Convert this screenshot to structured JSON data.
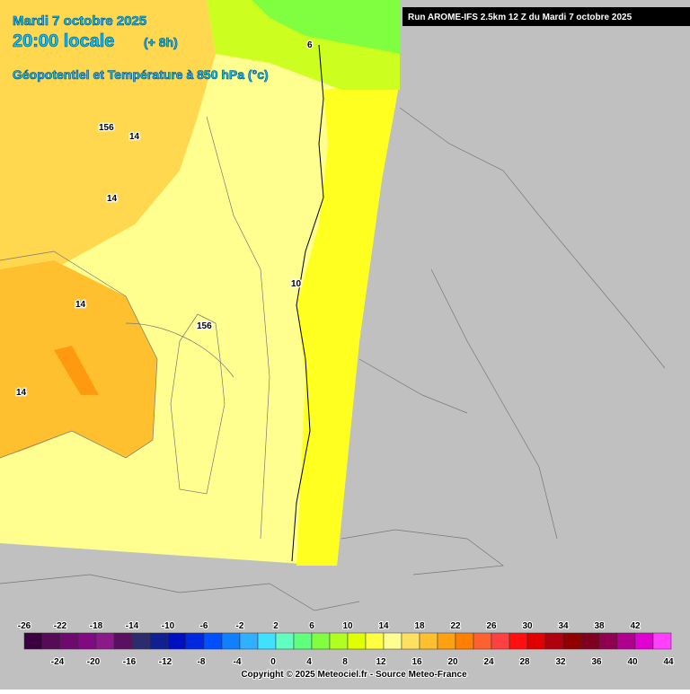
{
  "header": {
    "date": "Mardi 7 octobre 2025",
    "time": "20:00 locale",
    "lead": "(+ 8h)",
    "field": "Géopotentiel et Température à 850 hPa (°c)"
  },
  "run": "Run AROME-IFS 2.5km 12 Z du Mardi 7 octobre 2025",
  "contour_labels": [
    "6",
    "156",
    "14",
    "14",
    "14",
    "10",
    "156",
    "14"
  ],
  "legend": {
    "values": [
      -26,
      -24,
      -22,
      -20,
      -18,
      -16,
      -14,
      -12,
      -10,
      -8,
      -6,
      -4,
      -2,
      0,
      2,
      4,
      6,
      8,
      10,
      12,
      14,
      16,
      18,
      20,
      22,
      24,
      26,
      28,
      30,
      32,
      34,
      36,
      38,
      40,
      42,
      44
    ],
    "colors": [
      "#3c0040",
      "#560a58",
      "#6e0a6e",
      "#800a80",
      "#8a1a8a",
      "#5a1060",
      "#2c2c6c",
      "#102090",
      "#0010c0",
      "#0028e0",
      "#0050ff",
      "#1080ff",
      "#30b0ff",
      "#40e0ff",
      "#60ffc0",
      "#60ff80",
      "#80ff40",
      "#b0ff20",
      "#e0ff00",
      "#ffff40",
      "#ffff90",
      "#ffe060",
      "#ffc030",
      "#ffa010",
      "#ff8000",
      "#ff6030",
      "#ff4040",
      "#ff1010",
      "#e00000",
      "#b00010",
      "#900000",
      "#800020",
      "#900050",
      "#b00090",
      "#e000d0",
      "#ff40ff"
    ]
  },
  "copyright": "Copyright © 2025 Meteociel.fr - Source Meteo-France"
}
